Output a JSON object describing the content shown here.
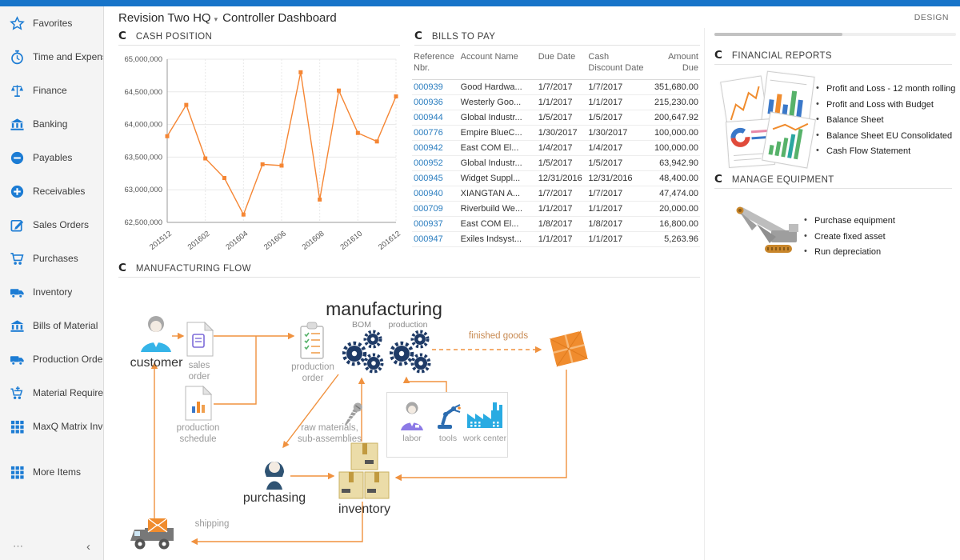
{
  "icons": {
    "refresh_glyph": "C",
    "caret": "▾",
    "overflow": "⋯",
    "collapse": "‹"
  },
  "header": {
    "company": "Revision Two HQ",
    "page_title": "Controller Dashboard",
    "design_label": "DESIGN"
  },
  "sidebar": {
    "items": [
      {
        "label": "Favorites",
        "icon": "star-icon"
      },
      {
        "label": "Time and Expenses",
        "icon": "stopwatch-icon"
      },
      {
        "label": "Finance",
        "icon": "scales-icon"
      },
      {
        "label": "Banking",
        "icon": "bank-icon"
      },
      {
        "label": "Payables",
        "icon": "minus-circle-icon"
      },
      {
        "label": "Receivables",
        "icon": "plus-circle-icon"
      },
      {
        "label": "Sales Orders",
        "icon": "edit-icon"
      },
      {
        "label": "Purchases",
        "icon": "cart-icon"
      },
      {
        "label": "Inventory",
        "icon": "truck-icon"
      },
      {
        "label": "Bills of Material",
        "icon": "bank-icon"
      },
      {
        "label": "Production Orders",
        "icon": "truck-icon"
      },
      {
        "label": "Material Requirem...",
        "icon": "cart-plus-icon"
      },
      {
        "label": "MaxQ Matrix Invent...",
        "icon": "grid-icon"
      },
      {
        "label": "More Items",
        "icon": "grid-icon"
      }
    ]
  },
  "panels": {
    "cash_position": {
      "title": "CASH POSITION"
    },
    "bills_to_pay": {
      "title": "BILLS TO PAY",
      "columns": [
        "Reference Nbr.",
        "Account Name",
        "Due Date",
        "Cash Discount Date",
        "Amount Due"
      ],
      "rows": [
        [
          "000939",
          "Good Hardwa...",
          "1/7/2017",
          "1/7/2017",
          "351,680.00"
        ],
        [
          "000936",
          "Westerly Goo...",
          "1/1/2017",
          "1/1/2017",
          "215,230.00"
        ],
        [
          "000944",
          "Global Industr...",
          "1/5/2017",
          "1/5/2017",
          "200,647.92"
        ],
        [
          "000776",
          "Empire BlueC...",
          "1/30/2017",
          "1/30/2017",
          "100,000.00"
        ],
        [
          "000942",
          "East COM El...",
          "1/4/2017",
          "1/4/2017",
          "100,000.00"
        ],
        [
          "000952",
          "Global Industr...",
          "1/5/2017",
          "1/5/2017",
          "63,942.90"
        ],
        [
          "000945",
          "Widget Suppl...",
          "12/31/2016",
          "12/31/2016",
          "48,400.00"
        ],
        [
          "000940",
          "XIANGTAN A...",
          "1/7/2017",
          "1/7/2017",
          "47,474.00"
        ],
        [
          "000709",
          "Riverbuild We...",
          "1/1/2017",
          "1/1/2017",
          "20,000.00"
        ],
        [
          "000937",
          "East COM El...",
          "1/8/2017",
          "1/8/2017",
          "16,800.00"
        ],
        [
          "000947",
          "Exiles Indsyst...",
          "1/1/2017",
          "1/1/2017",
          "5,263.96"
        ]
      ]
    },
    "financial_reports": {
      "title": "FINANCIAL REPORTS",
      "links": [
        "Profit and Loss - 12 month rolling",
        "Profit and Loss with Budget",
        "Balance Sheet",
        "Balance Sheet EU Consolidated",
        "Cash Flow Statement"
      ]
    },
    "manage_equipment": {
      "title": "MANAGE EQUIPMENT",
      "links": [
        "Purchase equipment",
        "Create fixed asset",
        "Run depreciation"
      ]
    },
    "manufacturing_flow": {
      "title": "MANUFACTURING FLOW",
      "labels": {
        "manufacturing": "manufacturing",
        "bom": "BOM",
        "production": "production",
        "customer": "customer",
        "sales_order": "sales\norder",
        "production_order": "production\norder",
        "production_schedule": "production\nschedule",
        "finished_goods": "finished goods",
        "raw_materials": "raw materials,\nsub-assemblies",
        "labor": "labor",
        "tools": "tools",
        "work_center": "work center",
        "purchasing": "purchasing",
        "inventory": "inventory",
        "shipping": "shipping"
      }
    }
  },
  "chart_data": {
    "type": "line",
    "title": "CASH POSITION",
    "x": [
      "201512",
      "201601",
      "201602",
      "201603",
      "201604",
      "201605",
      "201606",
      "201607",
      "201608",
      "201609",
      "201610",
      "201611",
      "201612"
    ],
    "values": [
      63820000,
      64300000,
      63480000,
      63180000,
      62620000,
      63390000,
      63370000,
      64800000,
      62850000,
      64520000,
      63870000,
      63740000,
      64430000
    ],
    "x_tick_labels": [
      "201512",
      "201602",
      "201604",
      "201606",
      "201608",
      "201610",
      "201612"
    ],
    "ylim": [
      62500000,
      65000000
    ],
    "ytick_step": 500000,
    "ylabel": "",
    "xlabel": "",
    "grid": true,
    "legend": "none",
    "line_color": "#F58634"
  }
}
